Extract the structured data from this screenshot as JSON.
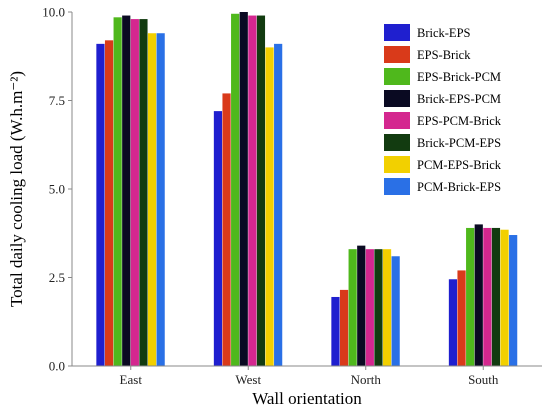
{
  "chart_data": {
    "type": "bar",
    "xlabel": "Wall orientation",
    "ylabel": "Total daily cooling load (W.h.m⁻²)",
    "ylim": [
      0,
      10
    ],
    "yticks": [
      "0.0",
      "2.5",
      "5.0",
      "7.5",
      "10.0"
    ],
    "ytick_values": [
      0,
      2.5,
      5,
      7.5,
      10
    ],
    "categories": [
      "East",
      "West",
      "North",
      "South"
    ],
    "legend_position": "top-right",
    "grid": false,
    "series": [
      {
        "name": "Brick-EPS",
        "color": "#1f1fcf",
        "values": [
          9.1,
          7.2,
          1.95,
          2.45
        ]
      },
      {
        "name": "EPS-Brick",
        "color": "#d93a1a",
        "values": [
          9.2,
          7.7,
          2.15,
          2.7
        ]
      },
      {
        "name": "EPS-Brick-PCM",
        "color": "#4fb81c",
        "values": [
          9.85,
          9.95,
          3.3,
          3.9
        ]
      },
      {
        "name": "Brick-EPS-PCM",
        "color": "#0a0a22",
        "values": [
          9.9,
          10.0,
          3.4,
          4.0
        ]
      },
      {
        "name": "EPS-PCM-Brick",
        "color": "#d4278f",
        "values": [
          9.8,
          9.9,
          3.3,
          3.9
        ]
      },
      {
        "name": "Brick-PCM-EPS",
        "color": "#123b10",
        "values": [
          9.8,
          9.9,
          3.3,
          3.9
        ]
      },
      {
        "name": "PCM-EPS-Brick",
        "color": "#f2d000",
        "values": [
          9.4,
          9.0,
          3.3,
          3.85
        ]
      },
      {
        "name": "PCM-Brick-EPS",
        "color": "#2a70e6",
        "values": [
          9.4,
          9.1,
          3.1,
          3.7
        ]
      }
    ]
  }
}
